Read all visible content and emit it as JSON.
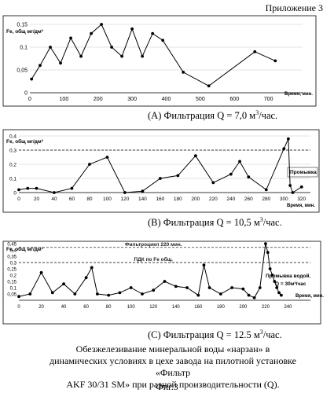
{
  "appendix": "Приложение 3",
  "charts": [
    {
      "caption_letter": "(A)",
      "caption_text": "Фильтрация",
      "caption_q": "Q = 7,0 м",
      "caption_unit": "/час.",
      "caption_sup": "3"
    },
    {
      "caption_letter": "(B)",
      "caption_text": "Фильтрация",
      "caption_q": "Q = 10,5 м",
      "caption_unit": "/час.",
      "caption_sup": "3"
    },
    {
      "caption_letter": "(C)",
      "caption_text": "Фильтрация",
      "caption_q": "Q = 12.5 м",
      "caption_unit": "/час.",
      "caption_sup": "3"
    }
  ],
  "description_lines": [
    "Обезжелезивание минеральной воды «нарзан» в",
    "динамических условиях в цехе завода на пилотной установке «Фильтр",
    "AKF 30/31 SM» при разной производительности (Q)."
  ],
  "figure_label": "Фиг.3",
  "chart_data": [
    {
      "type": "line",
      "ylabel": "Fe, общ мг/дм³",
      "xlabel": "Время, мин.",
      "xlim": [
        0,
        800
      ],
      "ylim": [
        0,
        0.15
      ],
      "xticks": [
        0,
        100,
        200,
        300,
        400,
        500,
        600,
        700
      ],
      "yticks": [
        0,
        0.05,
        0.1,
        0.15
      ],
      "ytick_labels": [
        "0",
        "0,05",
        "0,1",
        "0,15"
      ],
      "grid": "horizontal",
      "series": [
        {
          "x": [
            5,
            30,
            60,
            90,
            120,
            150,
            180,
            210,
            240,
            270,
            300,
            330,
            360,
            390,
            450,
            525,
            660,
            720
          ],
          "y": [
            0.03,
            0.06,
            0.1,
            0.065,
            0.12,
            0.08,
            0.13,
            0.15,
            0.1,
            0.08,
            0.14,
            0.08,
            0.13,
            0.115,
            0.045,
            0.015,
            0.09,
            0.07
          ]
        }
      ]
    },
    {
      "type": "line",
      "ylabel": "Fe, общ мг/дм³",
      "xlabel": "Время, мин.",
      "xlim": [
        0,
        330
      ],
      "ylim": [
        0,
        0.4
      ],
      "xticks": [
        0,
        20,
        40,
        60,
        80,
        100,
        120,
        140,
        160,
        180,
        200,
        220,
        240,
        260,
        280,
        300,
        320
      ],
      "yticks": [
        0,
        0.1,
        0.2,
        0.3,
        0.4
      ],
      "ytick_labels": [
        "0",
        "0,1",
        "0,2",
        "0,3",
        "0,4"
      ],
      "grid": "horizontal",
      "reference_line": {
        "y": 0.3,
        "style": "dashed"
      },
      "annotations": [
        "Промывка"
      ],
      "series": [
        {
          "x": [
            0,
            10,
            20,
            40,
            60,
            80,
            100,
            120,
            140,
            160,
            180,
            200,
            220,
            240,
            250,
            260,
            280,
            300,
            305,
            307,
            310,
            320
          ],
          "y": [
            0.02,
            0.03,
            0.03,
            0.0,
            0.03,
            0.2,
            0.25,
            0.0,
            0.01,
            0.1,
            0.12,
            0.26,
            0.07,
            0.13,
            0.22,
            0.11,
            0.02,
            0.31,
            0.38,
            0.05,
            0.0,
            0.04
          ]
        }
      ]
    },
    {
      "type": "line",
      "ylabel": "Fe, общ мг/дм³",
      "xlabel": "Время, мин.",
      "xlim": [
        0,
        260
      ],
      "ylim": [
        0,
        0.45
      ],
      "xticks": [
        0,
        20,
        40,
        60,
        80,
        100,
        120,
        140,
        160,
        180,
        200,
        220,
        240
      ],
      "yticks": [
        0.05,
        0.1,
        0.15,
        0.2,
        0.25,
        0.3,
        0.35,
        0.4,
        0.45
      ],
      "ytick_labels": [
        "0,05",
        "0,1",
        "0,15",
        "0,2",
        "0,25",
        "0,3",
        "0,35",
        "0,4",
        "0,45"
      ],
      "reference_lines": [
        {
          "y": 0.42,
          "style": "dashed",
          "label": "Фильтроцикл 220 мин."
        },
        {
          "y": 0.3,
          "style": "dashed",
          "label": "ПДК по Fe общ."
        }
      ],
      "annotations": [
        "Промывка водой.",
        "Q = 30м³/час"
      ],
      "series": [
        {
          "x": [
            0,
            10,
            20,
            30,
            40,
            50,
            60,
            65,
            70,
            80,
            90,
            100,
            110,
            120,
            130,
            140,
            150,
            160,
            165,
            170,
            180,
            190,
            200,
            205,
            210,
            215,
            220,
            222,
            224,
            226,
            228,
            230,
            232,
            234
          ],
          "y": [
            0.03,
            0.05,
            0.22,
            0.06,
            0.13,
            0.05,
            0.18,
            0.26,
            0.05,
            0.04,
            0.06,
            0.1,
            0.05,
            0.08,
            0.15,
            0.11,
            0.1,
            0.04,
            0.28,
            0.1,
            0.05,
            0.1,
            0.09,
            0.04,
            0.02,
            0.1,
            0.45,
            0.38,
            0.25,
            0.2,
            0.15,
            0.1,
            0.06,
            0.04
          ]
        }
      ]
    }
  ]
}
